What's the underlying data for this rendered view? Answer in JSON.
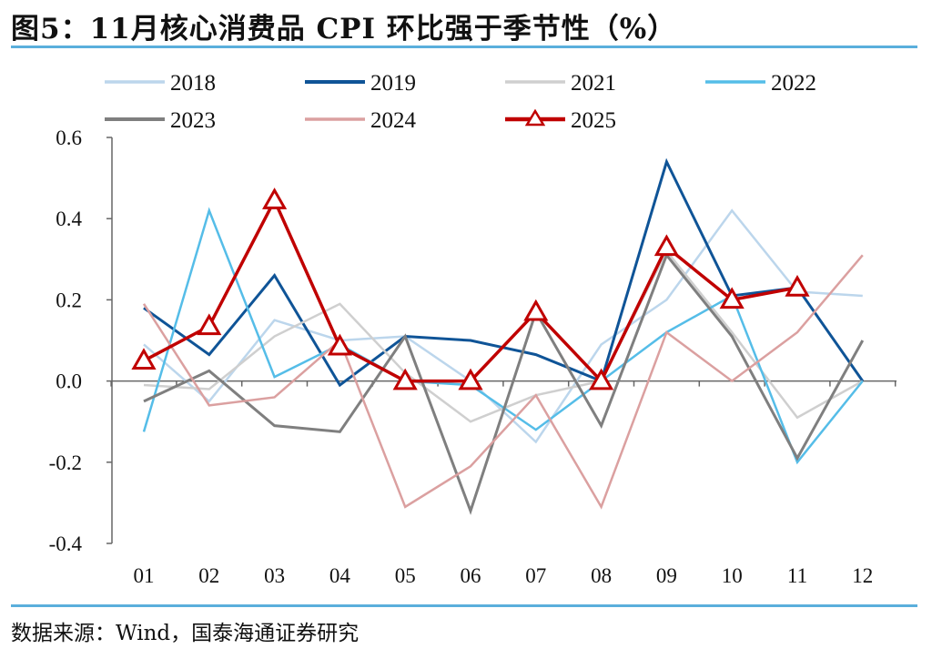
{
  "title": "图5：11月核心消费品 CPI 环比强于季节性（%）",
  "source": "数据来源：Wind，国泰海通证券研究",
  "accent_color": "#5aafdc",
  "chart_data": {
    "type": "line",
    "title": "",
    "xlabel": "",
    "ylabel": "",
    "categories": [
      "01",
      "02",
      "03",
      "04",
      "05",
      "06",
      "07",
      "08",
      "09",
      "10",
      "11",
      "12"
    ],
    "yticks": [
      "0.6",
      "0.4",
      "0.2",
      "0.0",
      "-0.2",
      "-0.4"
    ],
    "ylim": [
      -0.4,
      0.6
    ],
    "grid": false,
    "legend_position": "top",
    "series": [
      {
        "name": "2018",
        "color": "#bcd6ec",
        "width": 2.5,
        "values": [
          0.09,
          -0.05,
          0.15,
          0.1,
          0.11,
          0.0,
          -0.15,
          0.09,
          0.2,
          0.42,
          0.22,
          0.21
        ]
      },
      {
        "name": "2019",
        "color": "#0f5497",
        "width": 3,
        "values": [
          0.18,
          0.065,
          0.26,
          -0.01,
          0.11,
          0.1,
          0.065,
          0.0,
          0.54,
          0.21,
          0.23,
          0.0
        ]
      },
      {
        "name": "2021",
        "color": "#cfcfcf",
        "width": 2.5,
        "values": [
          -0.01,
          -0.02,
          0.11,
          0.19,
          0.02,
          -0.1,
          -0.035,
          0.0,
          0.32,
          0.12,
          -0.09,
          0.0
        ]
      },
      {
        "name": "2022",
        "color": "#55bde8",
        "width": 2.5,
        "values": [
          -0.125,
          0.42,
          0.01,
          0.09,
          0.0,
          -0.01,
          -0.12,
          0.0,
          0.12,
          0.21,
          -0.2,
          0.0
        ]
      },
      {
        "name": "2023",
        "color": "#7f7f7f",
        "width": 3,
        "values": [
          -0.05,
          0.025,
          -0.11,
          -0.125,
          0.11,
          -0.32,
          0.17,
          -0.11,
          0.31,
          0.11,
          -0.19,
          0.1
        ]
      },
      {
        "name": "2024",
        "color": "#dba0a0",
        "width": 2.5,
        "values": [
          0.19,
          -0.06,
          -0.04,
          0.1,
          -0.31,
          -0.21,
          -0.035,
          -0.31,
          0.12,
          0.0,
          0.12,
          0.31
        ]
      },
      {
        "name": "2025",
        "color": "#c00000",
        "width": 3.5,
        "marker": "triangle",
        "values": [
          0.05,
          0.135,
          0.445,
          0.085,
          0.0,
          0.0,
          0.17,
          0.0,
          0.33,
          0.2,
          0.23,
          null
        ]
      }
    ]
  }
}
